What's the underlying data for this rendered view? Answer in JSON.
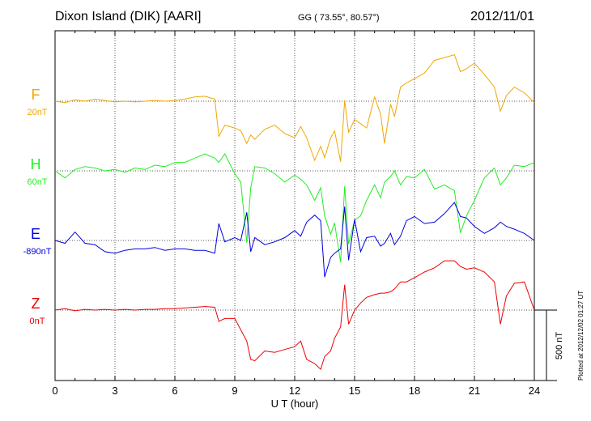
{
  "header": {
    "station": "Dixon Island (DIK)  [AARI]",
    "coords": "GG ( 73.55°,  80.57°)",
    "date": "2012/11/01",
    "plotted": "Plotted at 2012/12/02 01:27 UT"
  },
  "chart_data": {
    "type": "line",
    "xlabel": "U T (hour)",
    "xlim": [
      0,
      24
    ],
    "xticks": [
      0,
      3,
      6,
      9,
      12,
      15,
      18,
      21,
      24
    ],
    "ylim_nT": [
      -1500,
      1500
    ],
    "scale_bar": "500 nT",
    "grid": true,
    "series": [
      {
        "name": "F",
        "offset": "20nT",
        "color": "#f0a800",
        "x": [
          0,
          0.5,
          1,
          1.5,
          2,
          2.5,
          3,
          3.5,
          4,
          4.5,
          5,
          5.5,
          6,
          6.5,
          7,
          7.5,
          8,
          8.2,
          8.5,
          9,
          9.3,
          9.6,
          9.8,
          10,
          10.5,
          11,
          11.5,
          12,
          12.3,
          12.6,
          13,
          13.3,
          13.5,
          13.8,
          14,
          14.3,
          14.5,
          14.7,
          15,
          15.3,
          15.6,
          16,
          16.3,
          16.5,
          16.8,
          17,
          17.3,
          17.6,
          18,
          18.5,
          19,
          19.5,
          20,
          20.3,
          20.6,
          21,
          21.5,
          22,
          22.3,
          22.6,
          23,
          23.5,
          24
        ],
        "y": [
          0,
          -10,
          10,
          0,
          15,
          5,
          -5,
          0,
          -5,
          0,
          5,
          0,
          5,
          15,
          30,
          35,
          15,
          -250,
          -170,
          -190,
          -210,
          -300,
          -240,
          -270,
          -200,
          -170,
          -230,
          -260,
          -180,
          -260,
          -420,
          -320,
          -400,
          -260,
          -210,
          -430,
          5,
          -220,
          -130,
          -160,
          -190,
          30,
          -90,
          -300,
          -20,
          -110,
          100,
          130,
          160,
          200,
          290,
          310,
          330,
          210,
          230,
          270,
          190,
          100,
          -70,
          40,
          100,
          60,
          -10
        ]
      },
      {
        "name": "H",
        "offset": "60nT",
        "color": "#22ee22",
        "x": [
          0,
          0.5,
          1,
          1.5,
          2,
          2.5,
          3,
          3.5,
          4,
          4.5,
          5,
          5.5,
          6,
          6.5,
          7,
          7.5,
          8,
          8.2,
          8.5,
          9,
          9.3,
          9.6,
          9.8,
          10,
          10.5,
          11,
          11.5,
          12,
          12.3,
          12.6,
          13,
          13.3,
          13.5,
          13.8,
          14,
          14.3,
          14.5,
          14.7,
          15,
          15.3,
          15.6,
          16,
          16.3,
          16.5,
          16.8,
          17,
          17.3,
          17.6,
          18,
          18.5,
          19,
          19.5,
          20,
          20.3,
          20.6,
          21,
          21.5,
          22,
          22.3,
          22.6,
          23,
          23.5,
          24
        ],
        "y": [
          0,
          -50,
          10,
          30,
          20,
          0,
          10,
          -10,
          20,
          10,
          40,
          30,
          60,
          60,
          90,
          120,
          90,
          60,
          120,
          -20,
          -80,
          -510,
          -120,
          30,
          20,
          -20,
          -80,
          -30,
          -60,
          -100,
          -210,
          -120,
          -320,
          -450,
          -370,
          -650,
          -110,
          -520,
          -350,
          -320,
          -210,
          -100,
          -190,
          -80,
          -40,
          0,
          -100,
          -40,
          -50,
          10,
          -130,
          -100,
          -140,
          -440,
          -320,
          -210,
          -50,
          20,
          -100,
          -50,
          40,
          30,
          60
        ]
      },
      {
        "name": "E",
        "offset": "-890nT",
        "color": "#0000dd",
        "x": [
          0,
          0.5,
          1,
          1.5,
          2,
          2.5,
          3,
          3.5,
          4,
          4.5,
          5,
          5.5,
          6,
          6.5,
          7,
          7.5,
          8,
          8.2,
          8.5,
          9,
          9.3,
          9.6,
          9.8,
          10,
          10.5,
          11,
          11.5,
          12,
          12.3,
          12.6,
          13,
          13.3,
          13.5,
          13.8,
          14,
          14.3,
          14.5,
          14.7,
          15,
          15.3,
          15.6,
          16,
          16.3,
          16.5,
          16.8,
          17,
          17.3,
          17.6,
          18,
          18.5,
          19,
          19.5,
          20,
          20.3,
          20.6,
          21,
          21.5,
          22,
          22.3,
          22.6,
          23,
          23.5,
          24
        ],
        "y": [
          0,
          -20,
          60,
          -20,
          -30,
          -80,
          -90,
          -70,
          -60,
          -60,
          -50,
          -70,
          -60,
          -60,
          -70,
          -70,
          -90,
          120,
          -10,
          20,
          0,
          200,
          -80,
          20,
          -30,
          -10,
          20,
          70,
          30,
          130,
          180,
          140,
          -260,
          -120,
          -90,
          -60,
          240,
          -140,
          150,
          -80,
          20,
          30,
          -40,
          -20,
          50,
          -30,
          30,
          140,
          170,
          120,
          130,
          190,
          270,
          170,
          160,
          100,
          50,
          90,
          130,
          100,
          80,
          50,
          0
        ]
      },
      {
        "name": "Z",
        "offset": "0nT",
        "color": "#ee0000",
        "x": [
          0,
          0.5,
          1,
          1.5,
          2,
          2.5,
          3,
          3.5,
          4,
          4.5,
          5,
          5.5,
          6,
          6.5,
          7,
          7.5,
          8,
          8.2,
          8.5,
          9,
          9.3,
          9.6,
          9.8,
          10,
          10.5,
          11,
          11.5,
          12,
          12.3,
          12.6,
          13,
          13.3,
          13.5,
          13.8,
          14,
          14.3,
          14.5,
          14.7,
          15,
          15.3,
          15.6,
          16,
          16.3,
          16.5,
          16.8,
          17,
          17.3,
          17.6,
          18,
          18.5,
          19,
          19.5,
          20,
          20.3,
          20.6,
          21,
          21.5,
          22,
          22.3,
          22.6,
          23,
          23.5,
          24
        ],
        "y": [
          0,
          10,
          -5,
          5,
          0,
          5,
          0,
          5,
          0,
          5,
          5,
          10,
          10,
          15,
          20,
          25,
          20,
          -80,
          -60,
          -60,
          -140,
          -220,
          -350,
          -360,
          -290,
          -300,
          -280,
          -260,
          -220,
          -350,
          -380,
          -420,
          -330,
          -290,
          -200,
          -120,
          180,
          -100,
          0,
          50,
          90,
          110,
          120,
          120,
          130,
          150,
          200,
          200,
          230,
          270,
          300,
          350,
          350,
          310,
          290,
          300,
          270,
          200,
          -100,
          100,
          190,
          200,
          0
        ]
      }
    ]
  }
}
